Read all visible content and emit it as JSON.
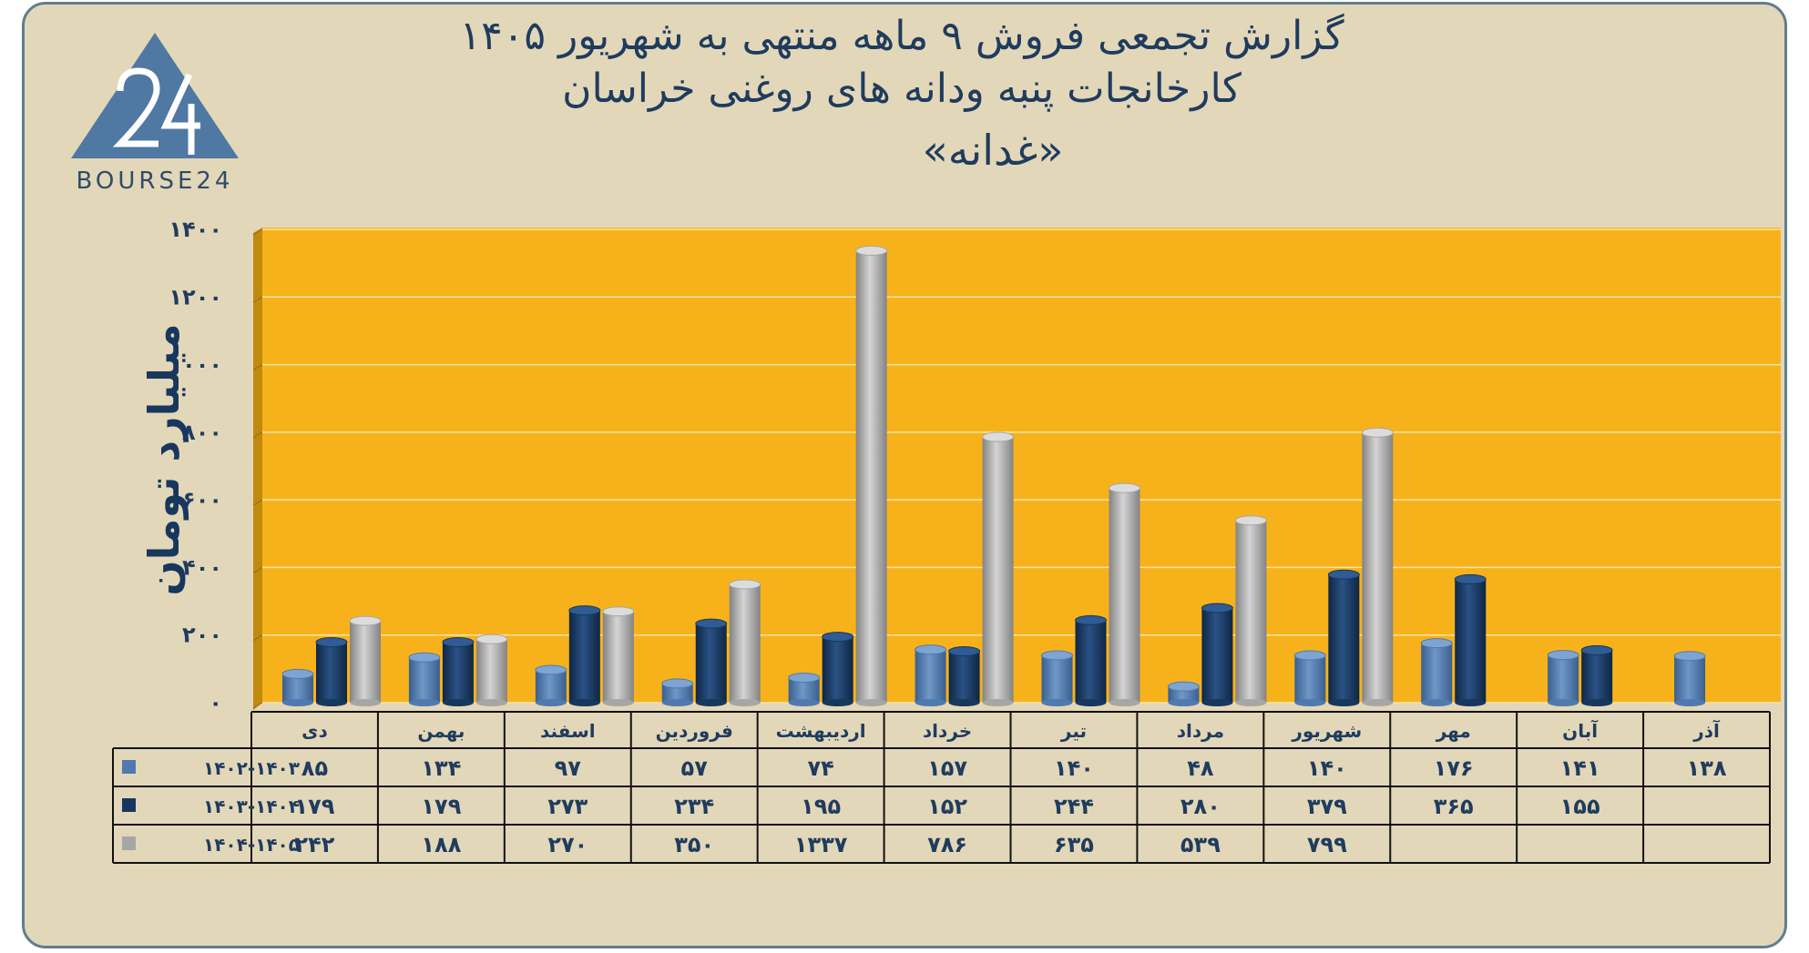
{
  "header": {
    "title_line1": "گزارش تجمعی فروش ۹ ماهه منتهی به شهریور ۱۴۰۵",
    "title_line2": "کارخانجات پنبه ودانه های روغنی خراسان",
    "title_line3": "«غدانه»"
  },
  "logo": {
    "mark": "24",
    "text": "BOURSE24"
  },
  "colors": {
    "background": "#e3d7b9",
    "plot": "#f7b21b",
    "series1": "#4f7ab0",
    "series2": "#17375e",
    "series3": "#a6a6a6",
    "text": "#1f3c5e"
  },
  "chart_data": {
    "type": "bar",
    "ylabel": "میلیارد تومان",
    "ylim": [
      0,
      1400
    ],
    "yticks": [
      "۰",
      "۲۰۰",
      "۴۰۰",
      "۶۰۰",
      "۸۰۰",
      "۱۰۰۰",
      "۱۲۰۰",
      "۱۴۰۰"
    ],
    "ytick_values": [
      0,
      200,
      400,
      600,
      800,
      1000,
      1200,
      1400
    ],
    "categories": [
      "دی",
      "بهمن",
      "اسفند",
      "فروردین",
      "اردیبهشت",
      "خرداد",
      "تیر",
      "مرداد",
      "شهریور",
      "مهر",
      "آبان",
      "آذر"
    ],
    "series": [
      {
        "name": "۱۴۰۲-۱۴۰۳",
        "values": [
          85,
          134,
          97,
          57,
          74,
          157,
          140,
          48,
          140,
          176,
          141,
          138
        ],
        "labels": [
          "۸۵",
          "۱۳۴",
          "۹۷",
          "۵۷",
          "۷۴",
          "۱۵۷",
          "۱۴۰",
          "۴۸",
          "۱۴۰",
          "۱۷۶",
          "۱۴۱",
          "۱۳۸"
        ]
      },
      {
        "name": "۱۴۰۳-۱۴۰۴",
        "values": [
          179,
          179,
          273,
          234,
          195,
          152,
          244,
          280,
          379,
          365,
          155,
          null
        ],
        "labels": [
          "۱۷۹",
          "۱۷۹",
          "۲۷۳",
          "۲۳۴",
          "۱۹۵",
          "۱۵۲",
          "۲۴۴",
          "۲۸۰",
          "۳۷۹",
          "۳۶۵",
          "۱۵۵",
          ""
        ]
      },
      {
        "name": "۱۴۰۴-۱۴۰۵",
        "values": [
          242,
          188,
          270,
          350,
          1337,
          786,
          635,
          539,
          799,
          null,
          null,
          null
        ],
        "labels": [
          "۲۴۲",
          "۱۸۸",
          "۲۷۰",
          "۳۵۰",
          "۱۳۳۷",
          "۷۸۶",
          "۶۳۵",
          "۵۳۹",
          "۷۹۹",
          "",
          "",
          ""
        ]
      }
    ],
    "grid": true,
    "legend": "data-table"
  }
}
